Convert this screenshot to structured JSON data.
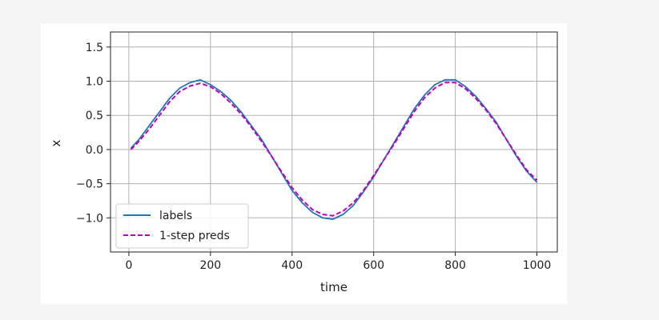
{
  "chart_data": {
    "type": "line",
    "title": "",
    "xlabel": "time",
    "ylabel": "x",
    "xlim": [
      -45,
      1050
    ],
    "ylim": [
      -1.5,
      1.72
    ],
    "xticks": [
      0,
      200,
      400,
      600,
      800,
      1000
    ],
    "yticks": [
      -1.0,
      -0.5,
      0.0,
      0.5,
      1.0,
      1.5
    ],
    "xtick_labels": [
      "0",
      "200",
      "400",
      "600",
      "800",
      "1000"
    ],
    "ytick_labels": [
      "−1.0",
      "−0.5",
      "0.0",
      "0.5",
      "1.0",
      "1.5"
    ],
    "grid": true,
    "legend_position": "lower-left",
    "x": [
      5,
      25,
      50,
      75,
      100,
      125,
      150,
      175,
      200,
      225,
      250,
      275,
      300,
      325,
      350,
      375,
      400,
      425,
      450,
      475,
      500,
      525,
      550,
      575,
      600,
      625,
      650,
      675,
      700,
      725,
      750,
      775,
      800,
      825,
      850,
      875,
      900,
      925,
      950,
      975,
      1000
    ],
    "series": [
      {
        "name": "labels",
        "color": "#1f77b4",
        "style": "solid",
        "values": [
          0.02,
          0.15,
          0.35,
          0.55,
          0.75,
          0.9,
          0.98,
          1.02,
          0.95,
          0.85,
          0.72,
          0.55,
          0.35,
          0.15,
          -0.1,
          -0.35,
          -0.6,
          -0.78,
          -0.92,
          -1.0,
          -1.02,
          -0.95,
          -0.82,
          -0.62,
          -0.4,
          -0.15,
          0.1,
          0.35,
          0.6,
          0.8,
          0.95,
          1.02,
          1.02,
          0.92,
          0.78,
          0.6,
          0.4,
          0.15,
          -0.1,
          -0.32,
          -0.48
        ]
      },
      {
        "name": "1-step preds",
        "color": "#c000c0",
        "style": "dashed",
        "values": [
          0.0,
          0.12,
          0.3,
          0.5,
          0.7,
          0.85,
          0.93,
          0.97,
          0.92,
          0.82,
          0.68,
          0.52,
          0.33,
          0.12,
          -0.1,
          -0.33,
          -0.56,
          -0.74,
          -0.88,
          -0.95,
          -0.97,
          -0.9,
          -0.78,
          -0.6,
          -0.38,
          -0.15,
          0.08,
          0.32,
          0.56,
          0.76,
          0.9,
          0.98,
          0.98,
          0.89,
          0.75,
          0.58,
          0.38,
          0.15,
          -0.08,
          -0.3,
          -0.45
        ]
      }
    ]
  }
}
